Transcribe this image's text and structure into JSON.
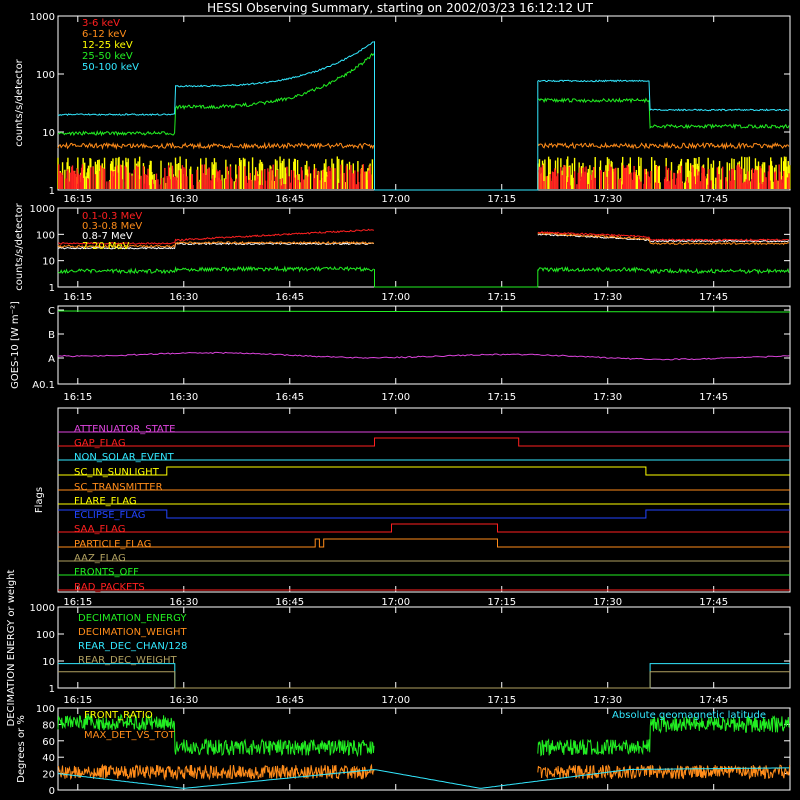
{
  "title": "HESSI Observing Summary, starting on 2002/03/23 16:12:12 UT",
  "colors": {
    "red": "#ff2020",
    "orange": "#ff8c1a",
    "yellow": "#ffff00",
    "green": "#22ee22",
    "cyan": "#33e8ff",
    "magenta": "#dd44dd",
    "blue": "#2244ff",
    "olive": "#b0a060",
    "white": "#ffffff",
    "gray": "#9a9a9a"
  },
  "chart_data": [
    {
      "type": "line",
      "ylabel": "counts/s/detector",
      "yscale": "log",
      "ylim": [
        1,
        1000
      ],
      "yticks": [
        "1",
        "10",
        "100",
        "1000"
      ],
      "xticks": [
        "16:15",
        "16:30",
        "16:45",
        "17:00",
        "17:15",
        "17:30",
        "17:45"
      ],
      "legend": [
        "3-6 keV",
        "6-12 keV",
        "12-25 keV",
        "25-50 keV",
        "50-100 keV"
      ],
      "series": [
        {
          "name": "3-6 keV",
          "color": "red",
          "values_desc": "noisy near 1-2"
        },
        {
          "name": "6-12 keV",
          "color": "orange",
          "level": 6
        },
        {
          "name": "12-25 keV",
          "color": "yellow",
          "level": 2
        },
        {
          "name": "25-50 keV",
          "color": "green",
          "segments": [
            [
              16.2,
              9.5
            ],
            [
              16.48,
              27
            ],
            [
              16.95,
              230
            ],
            [
              17.35,
              35
            ],
            [
              17.6,
              13
            ]
          ]
        },
        {
          "name": "50-100 keV",
          "color": "cyan",
          "segments": [
            [
              16.2,
              20
            ],
            [
              16.48,
              60
            ],
            [
              16.95,
              360
            ],
            [
              17.35,
              75
            ],
            [
              17.6,
              25
            ]
          ]
        }
      ]
    },
    {
      "type": "line",
      "ylabel": "counts/s/detector",
      "yscale": "log",
      "ylim": [
        1,
        1000
      ],
      "yticks": [
        "1",
        "10",
        "100",
        "1000"
      ],
      "xticks": [
        "16:15",
        "16:30",
        "16:45",
        "17:00",
        "17:15",
        "17:30",
        "17:45"
      ],
      "legend": [
        "0.1-0.3 MeV",
        "0.3-0.8 MeV",
        "0.8-7 MeV",
        "7-20 MeV"
      ],
      "series": [
        {
          "name": "0.1-0.3 MeV",
          "color": "red"
        },
        {
          "name": "0.3-0.8 MeV",
          "color": "orange"
        },
        {
          "name": "0.8-7 MeV",
          "color": "white"
        },
        {
          "name": "7-20 MeV",
          "color": "yellow"
        }
      ]
    },
    {
      "type": "line",
      "ylabel": "GOES-10 [W m⁻²]",
      "yticks": [
        "A0.1",
        "A",
        "B",
        "C"
      ],
      "xticks": [
        "16:15",
        "16:30",
        "16:45",
        "17:00",
        "17:15",
        "17:30",
        "17:45"
      ]
    },
    {
      "type": "line",
      "ylabel": "Flags",
      "flags": [
        {
          "name": "ATTENUATOR_STATE",
          "color": "magenta"
        },
        {
          "name": "GAP_FLAG",
          "color": "red"
        },
        {
          "name": "NON_SOLAR_EVENT",
          "color": "cyan"
        },
        {
          "name": "SC_IN_SUNLIGHT",
          "color": "yellow"
        },
        {
          "name": "SC_TRANSMITTER",
          "color": "orange"
        },
        {
          "name": "FLARE_FLAG",
          "color": "yellow"
        },
        {
          "name": "ECLIPSE_FLAG",
          "color": "blue"
        },
        {
          "name": "SAA_FLAG",
          "color": "red"
        },
        {
          "name": "PARTICLE_FLAG",
          "color": "orange"
        },
        {
          "name": "AAZ_FLAG",
          "color": "olive"
        },
        {
          "name": "FRONTS_OFF",
          "color": "green"
        },
        {
          "name": "BAD_PACKETS",
          "color": "red"
        }
      ],
      "xticks": [
        "16:15",
        "16:30",
        "16:45",
        "17:00",
        "17:15",
        "17:30",
        "17:45"
      ]
    },
    {
      "type": "line",
      "ylabel": "DECIMATION ENERGY or weight",
      "yscale": "log",
      "ylim": [
        1,
        1000
      ],
      "yticks": [
        "1",
        "10",
        "100",
        "1000"
      ],
      "legend": [
        "DECIMATION_ENERGY",
        "DECIMATION_WEIGHT",
        "REAR_DEC_CHAN/128",
        "REAR_DEC_WEIGHT"
      ],
      "xticks": [
        "16:15",
        "16:30",
        "16:45",
        "17:00",
        "17:15",
        "17:30",
        "17:45"
      ]
    },
    {
      "type": "line",
      "ylabel": "Degrees or %",
      "ylim": [
        0,
        100
      ],
      "yticks": [
        "0",
        "20",
        "40",
        "60",
        "80",
        "100"
      ],
      "legend": [
        "FRONT_RATIO",
        "MAX_DET_VS_TOT"
      ],
      "right_label": "Absolute geomagnetic latitude"
    }
  ]
}
